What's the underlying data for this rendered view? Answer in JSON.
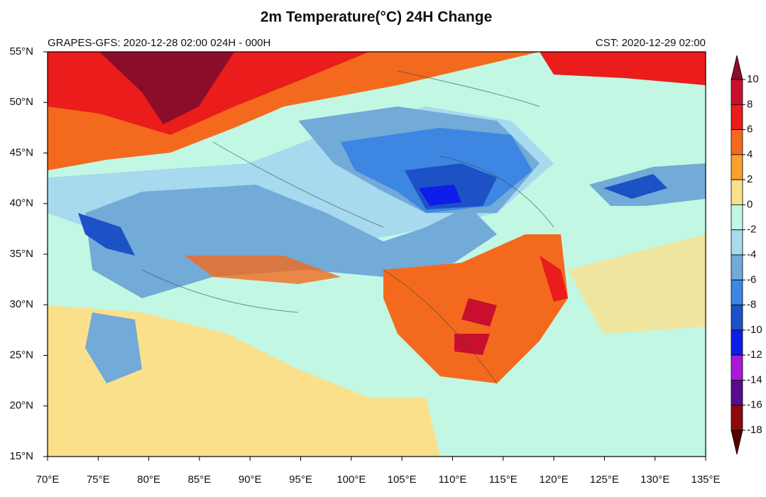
{
  "chart_data": {
    "type": "map",
    "title": "2m Temperature(°C) 24H Change",
    "subtitle_left": "GRAPES-GFS: 2020-12-28 02:00  024H - 000H",
    "subtitle_right": "CST: 2020-12-29 02:00",
    "xlim": [
      70,
      135
    ],
    "ylim": [
      15,
      55
    ],
    "xticks": [
      {
        "value": 70,
        "label": "70°E"
      },
      {
        "value": 75,
        "label": "75°E"
      },
      {
        "value": 80,
        "label": "80°E"
      },
      {
        "value": 85,
        "label": "85°E"
      },
      {
        "value": 90,
        "label": "90°E"
      },
      {
        "value": 95,
        "label": "95°E"
      },
      {
        "value": 100,
        "label": "100°E"
      },
      {
        "value": 105,
        "label": "105°E"
      },
      {
        "value": 110,
        "label": "110°E"
      },
      {
        "value": 115,
        "label": "115°E"
      },
      {
        "value": 120,
        "label": "120°E"
      },
      {
        "value": 125,
        "label": "125°E"
      },
      {
        "value": 130,
        "label": "130°E"
      },
      {
        "value": 135,
        "label": "135°E"
      }
    ],
    "yticks": [
      {
        "value": 15,
        "label": "15°N"
      },
      {
        "value": 20,
        "label": "20°N"
      },
      {
        "value": 25,
        "label": "25°N"
      },
      {
        "value": 30,
        "label": "30°N"
      },
      {
        "value": 35,
        "label": "35°N"
      },
      {
        "value": 40,
        "label": "40°N"
      },
      {
        "value": 45,
        "label": "45°N"
      },
      {
        "value": 50,
        "label": "50°N"
      },
      {
        "value": 55,
        "label": "55°N"
      }
    ],
    "colorbar": {
      "levels": [
        10,
        8,
        6,
        4,
        2,
        0,
        -2,
        -4,
        -6,
        -8,
        -10,
        -12,
        -14,
        -16,
        -18
      ],
      "colors": [
        "#8c0d2a",
        "#c8102e",
        "#ea1c1c",
        "#f36a1e",
        "#f7a02c",
        "#fbe08c",
        "#c2f7e4",
        "#a7daee",
        "#72aad8",
        "#3d86e2",
        "#1c52c6",
        "#0d1ee8",
        "#a81ad8",
        "#5a0b8c",
        "#8c0a0a",
        "#560000"
      ]
    }
  }
}
